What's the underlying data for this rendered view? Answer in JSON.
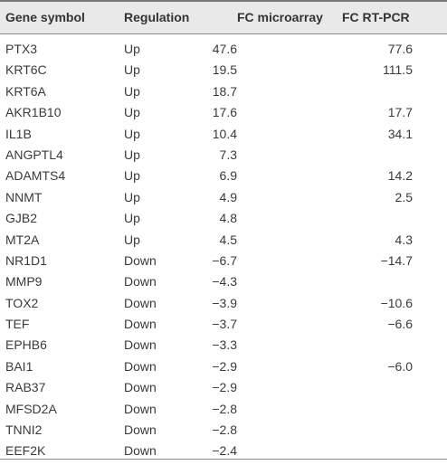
{
  "table": {
    "headers": {
      "gene": "Gene symbol",
      "regulation": "Regulation",
      "fc_microarray": "FC microarray",
      "fc_rtpcr": "FC RT-PCR"
    },
    "rows": [
      {
        "gene": "PTX3",
        "regulation": "Up",
        "fc_microarray": "47.6",
        "fc_rtpcr": "77.6"
      },
      {
        "gene": "KRT6C",
        "regulation": "Up",
        "fc_microarray": "19.5",
        "fc_rtpcr": "111.5"
      },
      {
        "gene": "KRT6A",
        "regulation": "Up",
        "fc_microarray": "18.7",
        "fc_rtpcr": ""
      },
      {
        "gene": "AKR1B10",
        "regulation": "Up",
        "fc_microarray": "17.6",
        "fc_rtpcr": "17.7"
      },
      {
        "gene": "IL1B",
        "regulation": "Up",
        "fc_microarray": "10.4",
        "fc_rtpcr": "34.1"
      },
      {
        "gene": "ANGPTL4",
        "regulation": "Up",
        "fc_microarray": "7.3",
        "fc_rtpcr": ""
      },
      {
        "gene": "ADAMTS4",
        "regulation": "Up",
        "fc_microarray": "6.9",
        "fc_rtpcr": "14.2"
      },
      {
        "gene": "NNMT",
        "regulation": "Up",
        "fc_microarray": "4.9",
        "fc_rtpcr": "2.5"
      },
      {
        "gene": "GJB2",
        "regulation": "Up",
        "fc_microarray": "4.8",
        "fc_rtpcr": ""
      },
      {
        "gene": "MT2A",
        "regulation": "Up",
        "fc_microarray": "4.5",
        "fc_rtpcr": "4.3"
      },
      {
        "gene": "NR1D1",
        "regulation": "Down",
        "fc_microarray": "−6.7",
        "fc_rtpcr": "−14.7"
      },
      {
        "gene": "MMP9",
        "regulation": "Down",
        "fc_microarray": "−4.3",
        "fc_rtpcr": ""
      },
      {
        "gene": "TOX2",
        "regulation": "Down",
        "fc_microarray": "−3.9",
        "fc_rtpcr": "−10.6"
      },
      {
        "gene": "TEF",
        "regulation": "Down",
        "fc_microarray": "−3.7",
        "fc_rtpcr": "−6.6"
      },
      {
        "gene": "EPHB6",
        "regulation": "Down",
        "fc_microarray": "−3.3",
        "fc_rtpcr": ""
      },
      {
        "gene": "BAI1",
        "regulation": "Down",
        "fc_microarray": "−2.9",
        "fc_rtpcr": "−6.0"
      },
      {
        "gene": "RAB37",
        "regulation": "Down",
        "fc_microarray": "−2.9",
        "fc_rtpcr": ""
      },
      {
        "gene": "MFSD2A",
        "regulation": "Down",
        "fc_microarray": "−2.8",
        "fc_rtpcr": ""
      },
      {
        "gene": "TNNI2",
        "regulation": "Down",
        "fc_microarray": "−2.8",
        "fc_rtpcr": ""
      },
      {
        "gene": "EEF2K",
        "regulation": "Down",
        "fc_microarray": "−2.4",
        "fc_rtpcr": ""
      }
    ]
  }
}
